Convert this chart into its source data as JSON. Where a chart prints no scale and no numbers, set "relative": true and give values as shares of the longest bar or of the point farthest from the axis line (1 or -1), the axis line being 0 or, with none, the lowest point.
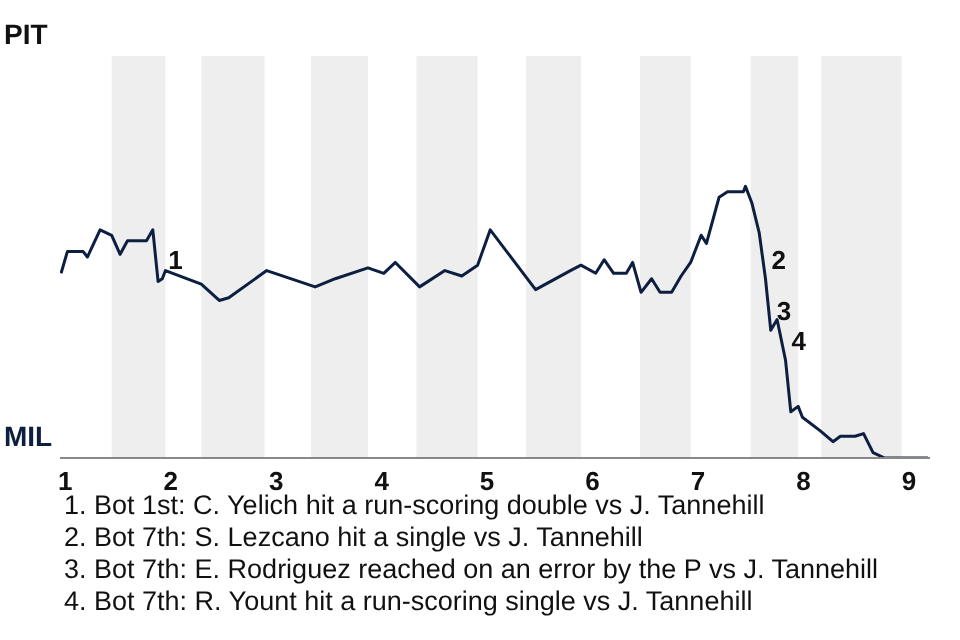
{
  "chart_data": {
    "type": "line",
    "relative": true,
    "x": [
      0.96,
      1.02,
      1.17,
      1.21,
      1.33,
      1.44,
      1.52,
      1.59,
      1.77,
      1.83,
      1.88,
      1.92,
      1.95,
      2.29,
      2.46,
      2.55,
      2.91,
      3.37,
      3.56,
      3.87,
      4.02,
      4.13,
      4.36,
      4.6,
      4.76,
      4.91,
      5.03,
      5.46,
      5.79,
      5.89,
      6.03,
      6.11,
      6.2,
      6.32,
      6.38,
      6.46,
      6.56,
      6.64,
      6.75,
      6.84,
      6.93,
      7.03,
      7.08,
      7.2,
      7.28,
      7.43,
      7.45,
      7.51,
      7.58,
      7.64,
      7.69,
      7.75,
      7.83,
      7.88,
      7.95,
      7.99,
      8.16,
      8.28,
      8.35,
      8.49,
      8.57,
      8.66,
      8.77,
      9.18
    ],
    "series": [
      {
        "color": "#0d1f40",
        "values": [
          0.68,
          0.76,
          0.76,
          0.74,
          0.84,
          0.82,
          0.75,
          0.8,
          0.8,
          0.84,
          0.65,
          0.66,
          0.69,
          0.64,
          0.58,
          0.59,
          0.69,
          0.63,
          0.66,
          0.7,
          0.68,
          0.72,
          0.63,
          0.69,
          0.67,
          0.71,
          0.84,
          0.62,
          0.69,
          0.71,
          0.68,
          0.73,
          0.68,
          0.68,
          0.72,
          0.61,
          0.66,
          0.61,
          0.61,
          0.67,
          0.72,
          0.82,
          0.79,
          0.96,
          0.98,
          0.98,
          1,
          0.94,
          0.83,
          0.66,
          0.47,
          0.51,
          0.36,
          0.17,
          0.19,
          0.15,
          0.1,
          0.06,
          0.08,
          0.08,
          0.09,
          0.02,
          0,
          0
        ]
      }
    ],
    "xlim": [
      0.95,
      9.2
    ],
    "xticks": [
      1,
      2,
      3,
      4,
      5,
      6,
      7,
      8,
      9
    ],
    "bands": [
      {
        "axis": "x",
        "from": 1.44,
        "to": 1.95,
        "color": "#eeeeee"
      },
      {
        "axis": "x",
        "from": 2.29,
        "to": 2.89,
        "color": "#eeeeee"
      },
      {
        "axis": "x",
        "from": 3.33,
        "to": 3.87,
        "color": "#eeeeee"
      },
      {
        "axis": "x",
        "from": 4.33,
        "to": 4.91,
        "color": "#eeeeee"
      },
      {
        "axis": "x",
        "from": 5.37,
        "to": 5.89,
        "color": "#eeeeee"
      },
      {
        "axis": "x",
        "from": 6.45,
        "to": 6.93,
        "color": "#eeeeee"
      },
      {
        "axis": "x",
        "from": 7.5,
        "to": 7.95,
        "color": "#eeeeee"
      },
      {
        "axis": "x",
        "from": 8.17,
        "to": 8.93,
        "color": "#eeeeee"
      }
    ],
    "annotations": [
      "PIT",
      "MIL",
      {
        "text": "1",
        "x": 1.92,
        "y": 0.66
      },
      {
        "text": "2",
        "x": 7.64,
        "y": 0.66
      },
      {
        "text": "3",
        "x": 7.69,
        "y": 0.47
      },
      {
        "text": "4",
        "x": 7.83,
        "y": 0.36
      },
      "1. Bot 1st: C. Yelich hit a run-scoring double vs J. Tannehill",
      "2. Bot 7th: S. Lezcano hit a single vs J. Tannehill",
      "3. Bot 7th: E. Rodriguez reached on an error by the P vs J. Tannehill",
      "4. Bot 7th: R. Yount hit a run-scoring single vs J. Tannehill"
    ]
  }
}
